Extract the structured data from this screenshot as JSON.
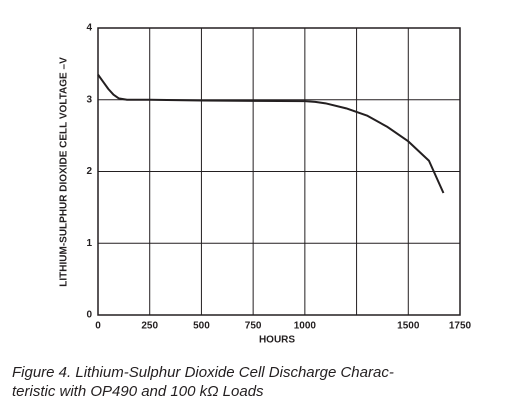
{
  "chart_data": {
    "type": "line",
    "x_label": "HOURS",
    "y_label": "LITHIUM-SULPHUR DIOXIDE CELL VOLTAGE –V",
    "caption": [
      "Figure 4. Lithium-Sulphur Dioxide Cell Discharge Charac-",
      "teristic with OP490 and 100 kΩ Loads"
    ],
    "x": [
      0,
      25,
      50,
      75,
      100,
      140,
      250,
      500,
      750,
      1000,
      1050,
      1100,
      1200,
      1300,
      1400,
      1500,
      1600,
      1670
    ],
    "series": [
      {
        "color": "#231f20",
        "values": [
          3.35,
          3.25,
          3.15,
          3.07,
          3.02,
          3.0,
          3.0,
          2.99,
          2.985,
          2.98,
          2.97,
          2.95,
          2.88,
          2.78,
          2.62,
          2.42,
          2.15,
          1.7
        ]
      }
    ],
    "xlim": [
      0,
      1750
    ],
    "xticks": [
      0,
      250,
      500,
      750,
      1000,
      1500,
      1750
    ],
    "xticks_minor": [
      1250
    ],
    "ylim": [
      0,
      4
    ],
    "yticks": [
      0,
      1,
      2,
      3,
      4
    ],
    "grid": true
  }
}
